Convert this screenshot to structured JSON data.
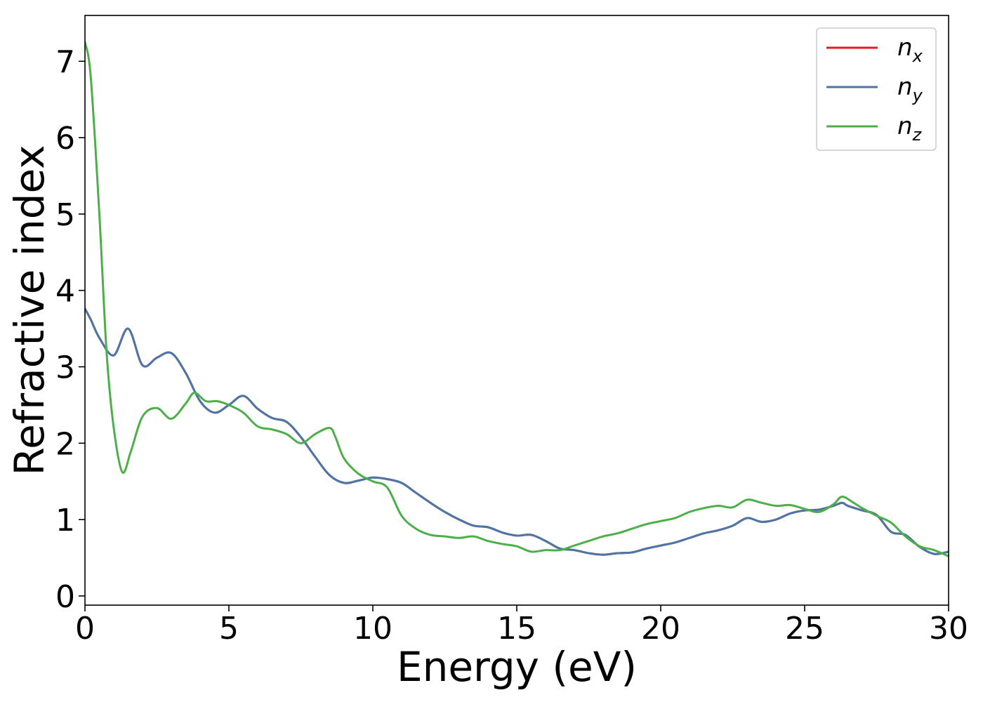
{
  "chart_data": {
    "type": "line",
    "xlabel": "Energy (eV)",
    "ylabel": "Refractive index",
    "xlim": [
      0,
      30
    ],
    "ylim": [
      -0.12,
      7.6
    ],
    "xticks": [
      0,
      5,
      10,
      15,
      20,
      25,
      30
    ],
    "yticks": [
      0,
      1,
      2,
      3,
      4,
      5,
      6,
      7
    ],
    "grid": false,
    "legend_position": "top-right",
    "series": [
      {
        "name": "n",
        "subscript": "x",
        "color": "#e41a1c",
        "x": [
          0,
          0.2,
          0.5,
          1.0,
          1.5,
          2.0,
          2.5,
          3.0,
          3.5,
          4.0,
          4.5,
          5.0,
          5.5,
          6.0,
          6.5,
          7.0,
          7.5,
          8.0,
          8.5,
          9.0,
          9.5,
          10.0,
          10.5,
          11.0,
          11.5,
          12.0,
          12.5,
          13.0,
          13.5,
          14.0,
          14.5,
          15.0,
          15.5,
          16.0,
          16.5,
          17.0,
          17.5,
          18.0,
          18.5,
          19.0,
          19.5,
          20.0,
          20.5,
          21.0,
          21.5,
          22.0,
          22.5,
          23.0,
          23.5,
          24.0,
          24.5,
          25.0,
          25.5,
          26.0,
          26.3,
          26.5,
          27.0,
          27.5,
          28.0,
          28.5,
          29.0,
          29.5,
          30.0
        ],
        "y": [
          3.76,
          3.62,
          3.38,
          3.15,
          3.5,
          3.02,
          3.12,
          3.18,
          2.92,
          2.55,
          2.4,
          2.5,
          2.62,
          2.45,
          2.33,
          2.28,
          2.08,
          1.82,
          1.58,
          1.48,
          1.51,
          1.55,
          1.53,
          1.48,
          1.35,
          1.22,
          1.1,
          1.0,
          0.92,
          0.9,
          0.83,
          0.79,
          0.8,
          0.72,
          0.62,
          0.6,
          0.56,
          0.54,
          0.56,
          0.57,
          0.62,
          0.66,
          0.7,
          0.76,
          0.82,
          0.86,
          0.92,
          1.02,
          0.97,
          1.0,
          1.08,
          1.12,
          1.13,
          1.18,
          1.22,
          1.18,
          1.12,
          1.06,
          0.84,
          0.8,
          0.64,
          0.55,
          0.58
        ]
      },
      {
        "name": "n",
        "subscript": "y",
        "color": "#4a76a8",
        "x": [
          0,
          0.2,
          0.5,
          1.0,
          1.5,
          2.0,
          2.5,
          3.0,
          3.5,
          4.0,
          4.5,
          5.0,
          5.5,
          6.0,
          6.5,
          7.0,
          7.5,
          8.0,
          8.5,
          9.0,
          9.5,
          10.0,
          10.5,
          11.0,
          11.5,
          12.0,
          12.5,
          13.0,
          13.5,
          14.0,
          14.5,
          15.0,
          15.5,
          16.0,
          16.5,
          17.0,
          17.5,
          18.0,
          18.5,
          19.0,
          19.5,
          20.0,
          20.5,
          21.0,
          21.5,
          22.0,
          22.5,
          23.0,
          23.5,
          24.0,
          24.5,
          25.0,
          25.5,
          26.0,
          26.3,
          26.5,
          27.0,
          27.5,
          28.0,
          28.5,
          29.0,
          29.5,
          30.0
        ],
        "y": [
          3.76,
          3.62,
          3.38,
          3.15,
          3.5,
          3.02,
          3.12,
          3.18,
          2.92,
          2.55,
          2.4,
          2.5,
          2.62,
          2.45,
          2.33,
          2.28,
          2.08,
          1.82,
          1.58,
          1.48,
          1.51,
          1.55,
          1.53,
          1.48,
          1.35,
          1.22,
          1.1,
          1.0,
          0.92,
          0.9,
          0.83,
          0.79,
          0.8,
          0.72,
          0.62,
          0.6,
          0.56,
          0.54,
          0.56,
          0.57,
          0.62,
          0.66,
          0.7,
          0.76,
          0.82,
          0.86,
          0.92,
          1.02,
          0.97,
          1.0,
          1.08,
          1.12,
          1.13,
          1.18,
          1.22,
          1.18,
          1.12,
          1.06,
          0.84,
          0.8,
          0.64,
          0.55,
          0.58
        ]
      },
      {
        "name": "n",
        "subscript": "z",
        "color": "#4daf4a",
        "x": [
          0,
          0.2,
          0.5,
          0.75,
          1.0,
          1.3,
          1.6,
          2.0,
          2.5,
          3.0,
          3.5,
          3.8,
          4.2,
          4.6,
          5.0,
          5.5,
          6.0,
          6.5,
          7.0,
          7.5,
          8.0,
          8.5,
          8.7,
          9.0,
          9.5,
          10.0,
          10.5,
          11.0,
          11.5,
          12.0,
          12.5,
          13.0,
          13.5,
          14.0,
          14.5,
          15.0,
          15.5,
          16.0,
          16.5,
          17.0,
          17.5,
          18.0,
          18.5,
          19.0,
          19.5,
          20.0,
          20.5,
          21.0,
          21.5,
          22.0,
          22.5,
          23.0,
          23.5,
          24.0,
          24.5,
          25.0,
          25.5,
          26.0,
          26.3,
          26.7,
          27.0,
          27.5,
          28.0,
          28.5,
          29.0,
          29.5,
          30.0
        ],
        "y": [
          7.25,
          6.8,
          5.0,
          3.2,
          2.2,
          1.62,
          1.9,
          2.35,
          2.46,
          2.32,
          2.52,
          2.66,
          2.55,
          2.55,
          2.5,
          2.4,
          2.22,
          2.18,
          2.12,
          2.0,
          2.12,
          2.2,
          2.08,
          1.8,
          1.6,
          1.5,
          1.42,
          1.05,
          0.88,
          0.8,
          0.78,
          0.76,
          0.78,
          0.72,
          0.68,
          0.65,
          0.58,
          0.6,
          0.6,
          0.66,
          0.72,
          0.78,
          0.82,
          0.88,
          0.94,
          0.98,
          1.02,
          1.1,
          1.15,
          1.18,
          1.16,
          1.26,
          1.22,
          1.18,
          1.19,
          1.14,
          1.1,
          1.2,
          1.3,
          1.22,
          1.15,
          1.05,
          0.96,
          0.78,
          0.65,
          0.6,
          0.52
        ]
      }
    ]
  }
}
